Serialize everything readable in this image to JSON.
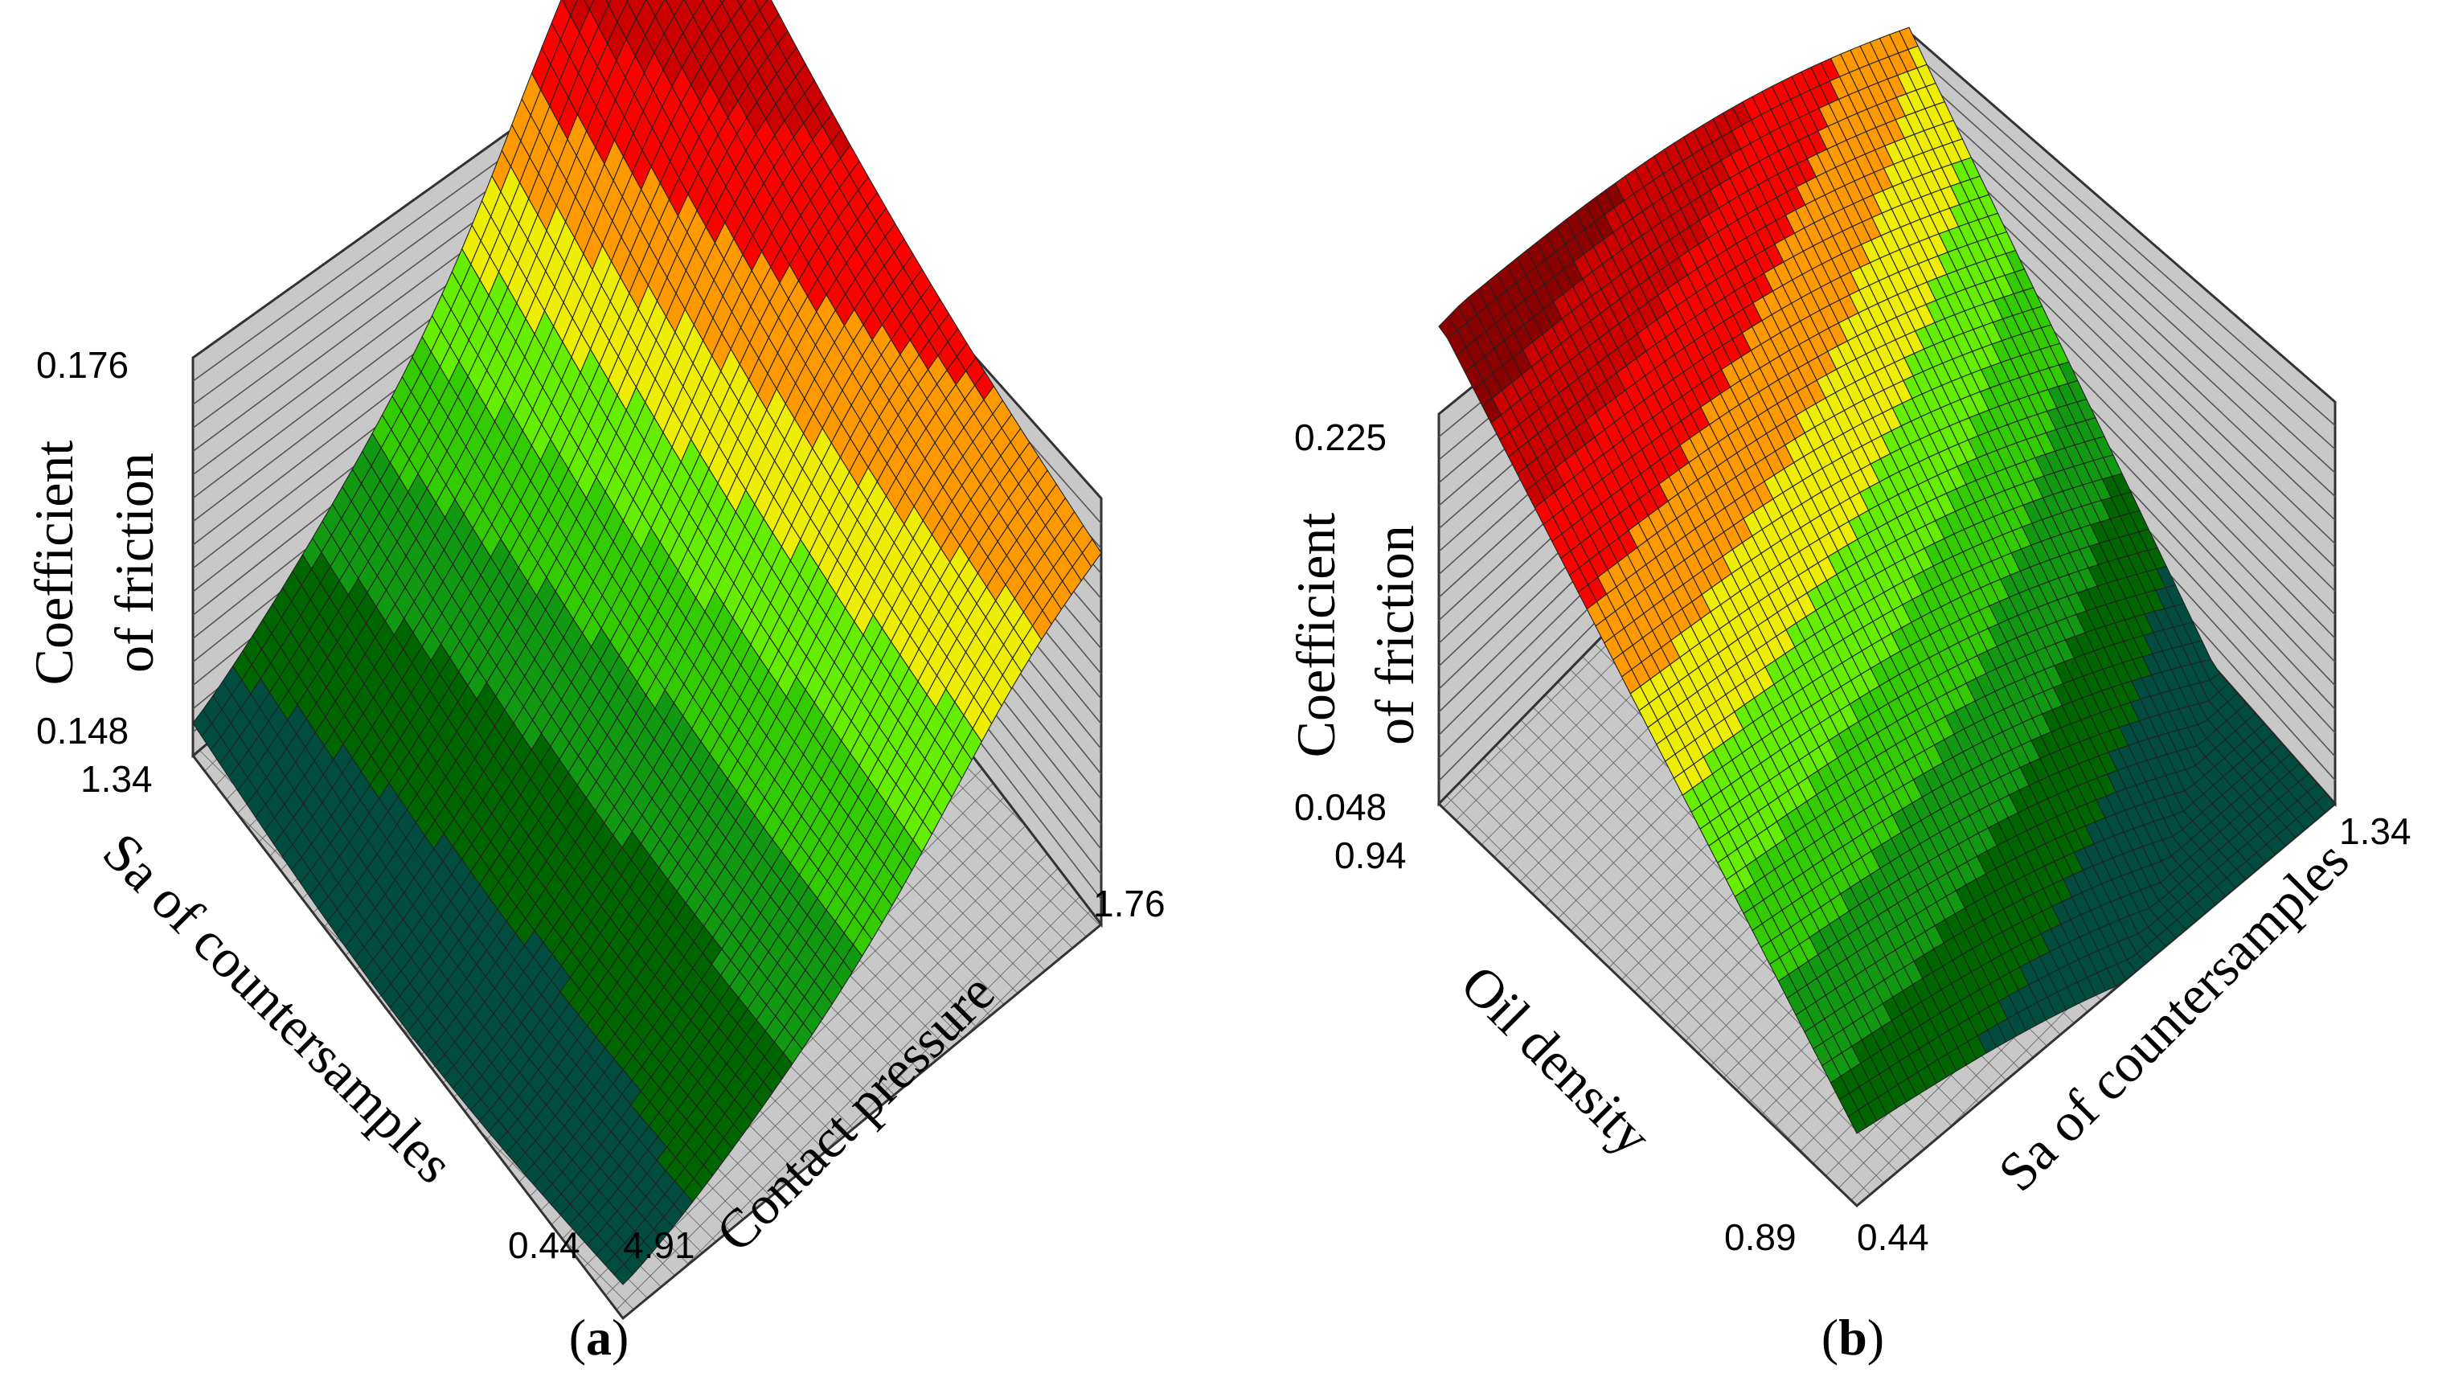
{
  "chart_data": [
    {
      "type": "surface",
      "panel_label": "a",
      "zlabel_line1": "Coefficient",
      "zlabel_line2": "of friction",
      "xlabel": "Sa of countersamples",
      "ylabel": "Contact pressure",
      "z_ticks": [
        "0.176",
        "0.148"
      ],
      "x_ticks": [
        "1.34",
        "0.44"
      ],
      "y_ticks": [
        "4.91",
        "1.76"
      ],
      "zlim": [
        0.148,
        0.176
      ],
      "xlim": [
        0.44,
        1.34
      ],
      "ylim": [
        1.76,
        4.91
      ],
      "colormap": [
        "#004d40",
        "#006600",
        "#119911",
        "#33cc00",
        "#66ee00",
        "#eeee00",
        "#ff9900",
        "#ff0000",
        "#cc0000",
        "#8b0000"
      ]
    },
    {
      "type": "surface",
      "panel_label": "b",
      "zlabel_line1": "Coefficient",
      "zlabel_line2": "of friction",
      "xlabel": "Oil density",
      "ylabel": "Sa of countersamples",
      "z_ticks": [
        "0.225",
        "0.048"
      ],
      "x_ticks": [
        "0.94",
        "0.89"
      ],
      "y_ticks": [
        "0.44",
        "1.34"
      ],
      "zlim": [
        0.048,
        0.225
      ],
      "xlim": [
        0.89,
        0.94
      ],
      "ylim": [
        0.44,
        1.34
      ],
      "colormap": [
        "#004d40",
        "#006600",
        "#119911",
        "#33cc00",
        "#66ee00",
        "#eeee00",
        "#ff9900",
        "#ff0000",
        "#cc0000",
        "#8b0000"
      ]
    }
  ]
}
